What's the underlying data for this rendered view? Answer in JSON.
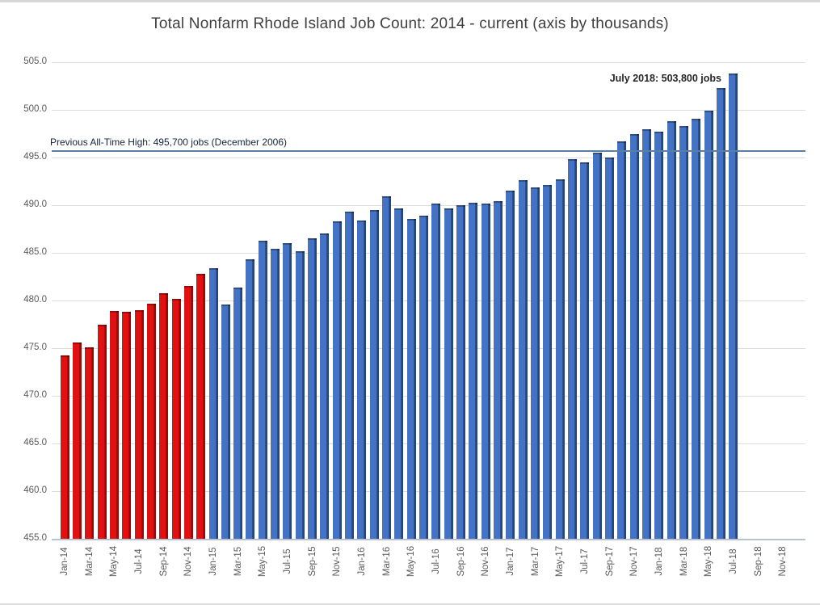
{
  "chart_data": {
    "type": "bar",
    "title": "Total Nonfarm Rhode Island Job Count: 2014 - current (axis by thousands)",
    "categories": [
      "Jan-14",
      "Feb-14",
      "Mar-14",
      "Apr-14",
      "May-14",
      "Jun-14",
      "Jul-14",
      "Aug-14",
      "Sep-14",
      "Oct-14",
      "Nov-14",
      "Dec-14",
      "Jan-15",
      "Feb-15",
      "Mar-15",
      "Apr-15",
      "May-15",
      "Jun-15",
      "Jul-15",
      "Aug-15",
      "Sep-15",
      "Oct-15",
      "Nov-15",
      "Dec-15",
      "Jan-16",
      "Feb-16",
      "Mar-16",
      "Apr-16",
      "May-16",
      "Jun-16",
      "Jul-16",
      "Aug-16",
      "Sep-16",
      "Oct-16",
      "Nov-16",
      "Dec-16",
      "Jan-17",
      "Feb-17",
      "Mar-17",
      "Apr-17",
      "May-17",
      "Jun-17",
      "Jul-17",
      "Aug-17",
      "Sep-17",
      "Oct-17",
      "Nov-17",
      "Dec-17",
      "Jan-18",
      "Feb-18",
      "Mar-18",
      "Apr-18",
      "May-18",
      "Jun-18",
      "Jul-18"
    ],
    "values": [
      474.2,
      475.6,
      475.1,
      477.5,
      478.9,
      478.8,
      479.0,
      479.7,
      480.8,
      480.2,
      481.5,
      482.8,
      483.4,
      479.6,
      481.4,
      484.3,
      486.3,
      485.4,
      486.0,
      485.2,
      486.5,
      487.0,
      488.3,
      489.3,
      488.4,
      489.5,
      490.9,
      489.7,
      488.6,
      488.9,
      490.2,
      489.7,
      490.0,
      490.3,
      490.2,
      490.4,
      491.5,
      492.6,
      491.9,
      492.1,
      492.7,
      494.8,
      494.5,
      495.5,
      495.0,
      496.7,
      497.5,
      498.0,
      497.7,
      498.8,
      498.3,
      499.1,
      499.9,
      502.3,
      503.8
    ],
    "red_bar_count": 12,
    "bar_colors": {
      "red_fill": "#e01111",
      "red_edge": "#8f0d0d",
      "blue_fill": "#4472c4",
      "blue_edge": "#2a4474"
    },
    "ylim": [
      455.0,
      505.0
    ],
    "ytick_labels": [
      "455.0",
      "460.0",
      "465.0",
      "470.0",
      "475.0",
      "480.0",
      "485.0",
      "490.0",
      "495.0",
      "500.0",
      "505.0"
    ],
    "xtick_labels": [
      "Jan-14",
      "Mar-14",
      "May-14",
      "Jul-14",
      "Sep-14",
      "Nov-14",
      "Jan-15",
      "Mar-15",
      "May-15",
      "Jul-15",
      "Sep-15",
      "Nov-15",
      "Jan-16",
      "Mar-16",
      "May-16",
      "Jul-16",
      "Sep-16",
      "Nov-16",
      "Jan-17",
      "Mar-17",
      "May-17",
      "Jul-17",
      "Sep-17",
      "Nov-17",
      "Jan-18",
      "Mar-18",
      "May-18",
      "Jul-18",
      "Sep-18",
      "Nov-18"
    ],
    "axis_month_slots": 60,
    "grid": true,
    "legend": "none",
    "reference_line": {
      "value": 495.7,
      "label": "Previous All-Time High: 495,700 jobs (December 2006)",
      "color": "#5b7ea1"
    },
    "annotation": {
      "text": "July 2018: 503,800 jobs",
      "month": "Jul-18",
      "value": 503.8
    },
    "gridline_color": "#dcdcdc",
    "text_color": "#595959",
    "title_color": "#3f3f3f"
  }
}
